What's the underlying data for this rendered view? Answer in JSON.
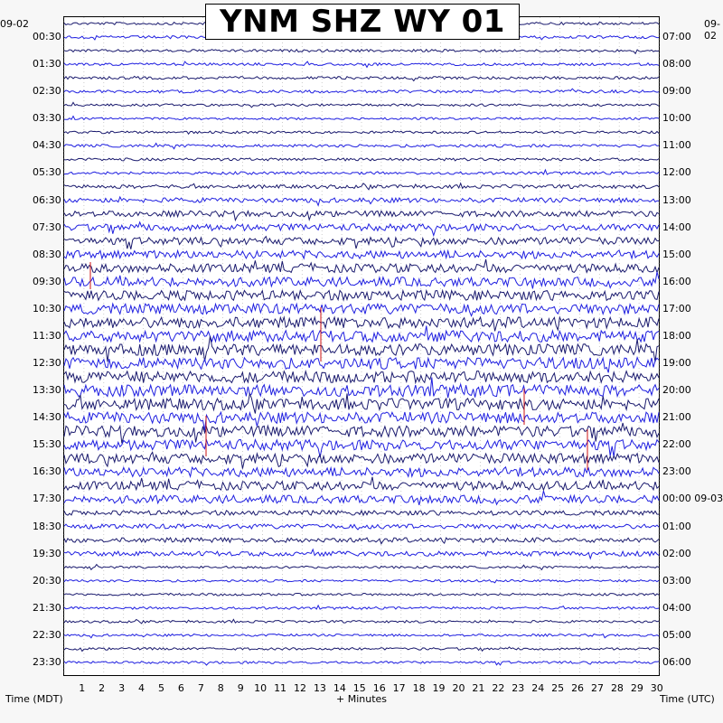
{
  "chart_data": {
    "type": "line",
    "title": "YNM SHZ WY 01",
    "xlabel": "+ Minutes",
    "x_ticks": [
      "1",
      "2",
      "3",
      "4",
      "5",
      "6",
      "7",
      "8",
      "9",
      "10",
      "11",
      "12",
      "13",
      "14",
      "15",
      "16",
      "17",
      "18",
      "19",
      "20",
      "21",
      "22",
      "23",
      "24",
      "25",
      "26",
      "27",
      "28",
      "29",
      "30"
    ],
    "xlim": [
      0,
      30
    ],
    "left_axis_label": "Time (MDT)",
    "right_axis_label": "Time (UTC)",
    "left_date": "09-02",
    "right_date": "09-02",
    "left_ticks": [
      "00:30",
      "01:30",
      "02:30",
      "03:30",
      "04:30",
      "05:30",
      "06:30",
      "07:30",
      "08:30",
      "09:30",
      "10:30",
      "11:30",
      "12:30",
      "13:30",
      "14:30",
      "15:30",
      "16:30",
      "17:30",
      "18:30",
      "19:30",
      "20:30",
      "21:30",
      "22:30",
      "23:30"
    ],
    "right_ticks": [
      "07:00",
      "08:00",
      "09:00",
      "10:00",
      "11:00",
      "12:00",
      "13:00",
      "14:00",
      "15:00",
      "16:00",
      "17:00",
      "18:00",
      "19:00",
      "20:00",
      "21:00",
      "22:00",
      "23:00",
      "00:00 09-03",
      "01:00",
      "02:00",
      "03:00",
      "04:00",
      "05:00",
      "06:00"
    ],
    "trace_colors": [
      "#1a1a6e",
      "#1f1fe0"
    ],
    "event_color": "#cc1111",
    "traces_per_hour": 2,
    "grid": "dotted"
  }
}
